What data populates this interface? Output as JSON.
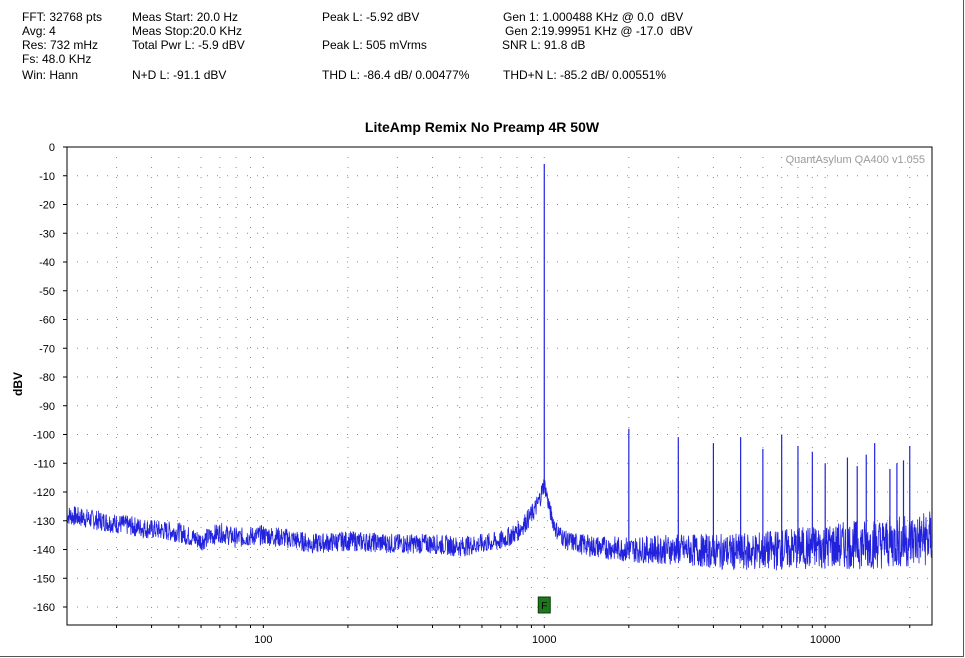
{
  "stats": {
    "fft": "FFT: 32768 pts",
    "avg": "Avg: 4",
    "res": "Res: 732 mHz",
    "fs": "Fs: 48.0 KHz",
    "win": "Win: Hann",
    "meas_start": "Meas Start: 20.0 Hz",
    "meas_stop": "Meas Stop:20.0 KHz",
    "total_pwr": "Total Pwr L: -5.9 dBV",
    "nd": "N+D L: -91.1 dBV",
    "peak_dbv": "Peak L: -5.92 dBV",
    "peak_vrms": "Peak L: 505 mVrms",
    "thd": "THD L: -86.4 dB/ 0.00477%",
    "gen1": "Gen 1: 1.000488 KHz @ 0.0  dBV",
    "gen2": "Gen 2:19.99951 KHz @ -17.0  dBV",
    "snr": "SNR L: 91.8 dB",
    "thdn": "THD+N L: -85.2 dB/ 0.00551%"
  },
  "chart_data": {
    "type": "line",
    "title": "LiteAmp Remix No Preamp 4R 50W",
    "xlabel": "",
    "ylabel": "dBV",
    "x_scale": "log",
    "xlim": [
      20,
      24000
    ],
    "ylim": [
      -165,
      0
    ],
    "x_ticks": [
      100,
      1000,
      10000
    ],
    "x_tick_labels": [
      "100",
      "1000",
      "10000"
    ],
    "y_ticks": [
      0,
      -10,
      -20,
      -30,
      -40,
      -50,
      -60,
      -70,
      -80,
      -90,
      -100,
      -110,
      -120,
      -130,
      -140,
      -150,
      -160
    ],
    "y_tick_labels": [
      "0",
      "-10",
      "-20",
      "-30",
      "-40",
      "-50",
      "-60",
      "-70",
      "-80",
      "-90",
      "-100",
      "-110",
      "-120",
      "-130",
      "-140",
      "-150",
      "-160"
    ],
    "grid": true,
    "watermark": "QuantAsylum QA400 v1.055",
    "marker_label": "F",
    "marker_x": 1000,
    "series": [
      {
        "color": "#2222dd",
        "noise_floor": {
          "x": [
            20,
            30,
            40,
            50,
            60,
            70,
            80,
            100,
            120,
            150,
            200,
            300,
            400,
            500,
            600,
            700,
            800,
            900,
            950,
            980,
            1000,
            1020,
            1050,
            1100,
            1200,
            1500,
            2000,
            3000,
            5000,
            7000,
            10000,
            15000,
            20000,
            24000
          ],
          "y": [
            -128,
            -131,
            -133,
            -134,
            -137,
            -134,
            -136,
            -135,
            -136,
            -138,
            -137,
            -138,
            -138,
            -139,
            -138,
            -137,
            -134,
            -128,
            -124,
            -120,
            -117,
            -121,
            -127,
            -133,
            -137,
            -139,
            -140,
            -140,
            -141,
            -140,
            -139,
            -138,
            -137,
            -136
          ]
        },
        "peaks": {
          "x": [
            1000,
            2000,
            3000,
            4000,
            5000,
            6000,
            7000,
            8000,
            9000,
            10000,
            12000,
            13000,
            14000,
            15000,
            17000,
            18000,
            19000,
            20000
          ],
          "y": [
            -5.9,
            -98,
            -101,
            -103,
            -101,
            -105,
            -100,
            -104,
            -106,
            -110,
            -108,
            -111,
            -107,
            -103,
            -112,
            -110,
            -109,
            -104
          ]
        }
      }
    ]
  }
}
